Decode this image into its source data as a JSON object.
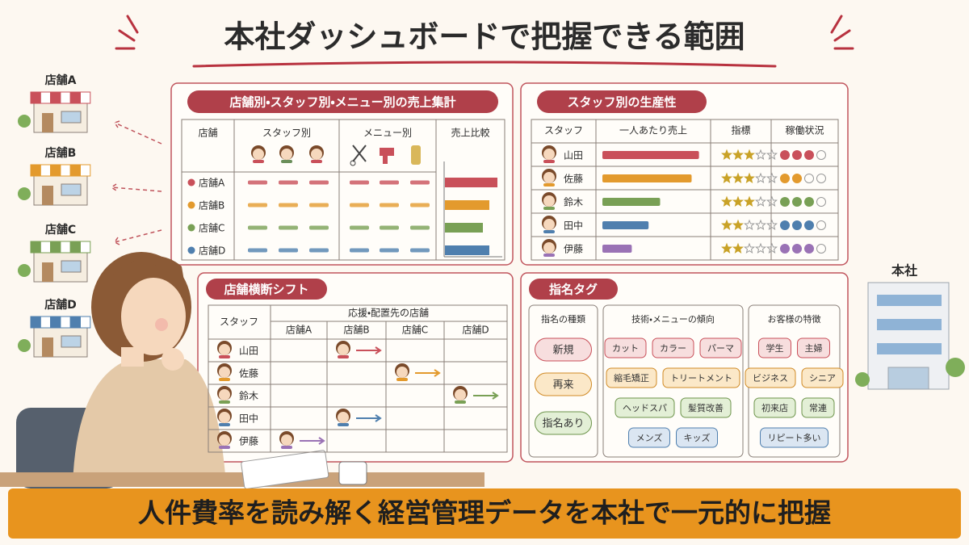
{
  "title": "本社ダッシュボードで把握できる範囲",
  "stores": [
    {
      "name": "店舗A",
      "color": "#c9505a"
    },
    {
      "name": "店舗B",
      "color": "#e39a2d"
    },
    {
      "name": "店舗C",
      "color": "#79a055"
    },
    {
      "name": "店舗D",
      "color": "#4f7fae"
    }
  ],
  "headquarters": "本社",
  "sales_summary": {
    "title": "店舗別・スタッフ別・メニュー別の売上集計",
    "headers": [
      "店舗",
      "スタッフ別",
      "メニュー別",
      "売上比較"
    ],
    "rows": [
      {
        "store": "店舗A",
        "compare": 65
      },
      {
        "store": "店舗B",
        "compare": 55
      },
      {
        "store": "店舗C",
        "compare": 47
      },
      {
        "store": "店舗D",
        "compare": 55
      }
    ]
  },
  "productivity": {
    "title": "スタッフ別の生産性",
    "headers": [
      "スタッフ",
      "一人あたり売上",
      "指標",
      "稼働状況"
    ],
    "rating_max": 5,
    "status_max": 4,
    "rows": [
      {
        "staff": "山田",
        "color": "#c9505a",
        "sales": 92,
        "rating": 3,
        "status": 3
      },
      {
        "staff": "佐藤",
        "color": "#e39a2d",
        "sales": 85,
        "rating": 3,
        "status": 2
      },
      {
        "staff": "鈴木",
        "color": "#79a055",
        "sales": 55,
        "rating": 3,
        "status": 3
      },
      {
        "staff": "田中",
        "color": "#4f7fae",
        "sales": 44,
        "rating": 2,
        "status": 3
      },
      {
        "staff": "伊藤",
        "color": "#9a72b5",
        "sales": 28,
        "rating": 2,
        "status": 3
      }
    ]
  },
  "shift": {
    "title": "店舗横断シフト",
    "staff_header": "スタッフ",
    "assign_header": "応援・配置先の店舗",
    "stores": [
      "店舗A",
      "店舗B",
      "店舗C",
      "店舗D"
    ],
    "rows": [
      {
        "staff": "山田",
        "assigned": [
          false,
          true,
          false,
          false
        ]
      },
      {
        "staff": "佐藤",
        "assigned": [
          false,
          false,
          true,
          false
        ]
      },
      {
        "staff": "鈴木",
        "assigned": [
          false,
          false,
          false,
          true
        ]
      },
      {
        "staff": "田中",
        "assigned": [
          false,
          true,
          false,
          false
        ]
      },
      {
        "staff": "伊藤",
        "assigned": [
          true,
          false,
          false,
          false
        ]
      }
    ]
  },
  "tags": {
    "title": "指名タグ",
    "groups": [
      {
        "title": "指名の種類",
        "rows": [
          [
            "新規"
          ],
          [
            "再来"
          ],
          [
            "指名あり"
          ]
        ]
      },
      {
        "title": "技術・メニューの傾向",
        "rows": [
          [
            "カット",
            "カラー",
            "パーマ"
          ],
          [
            "縮毛矯正",
            "トリートメント"
          ],
          [
            "ヘッドスパ",
            "髪質改善"
          ],
          [
            "メンズ",
            "キッズ"
          ]
        ]
      },
      {
        "title": "お客様の特徴",
        "rows": [
          [
            "学生",
            "主婦"
          ],
          [
            "ビジネス",
            "シニア"
          ],
          [
            "初来店",
            "常連"
          ],
          [
            "リピート多い"
          ]
        ]
      }
    ]
  },
  "banner": "人件費率を読み解く経営管理データを本社で一元的に把握"
}
